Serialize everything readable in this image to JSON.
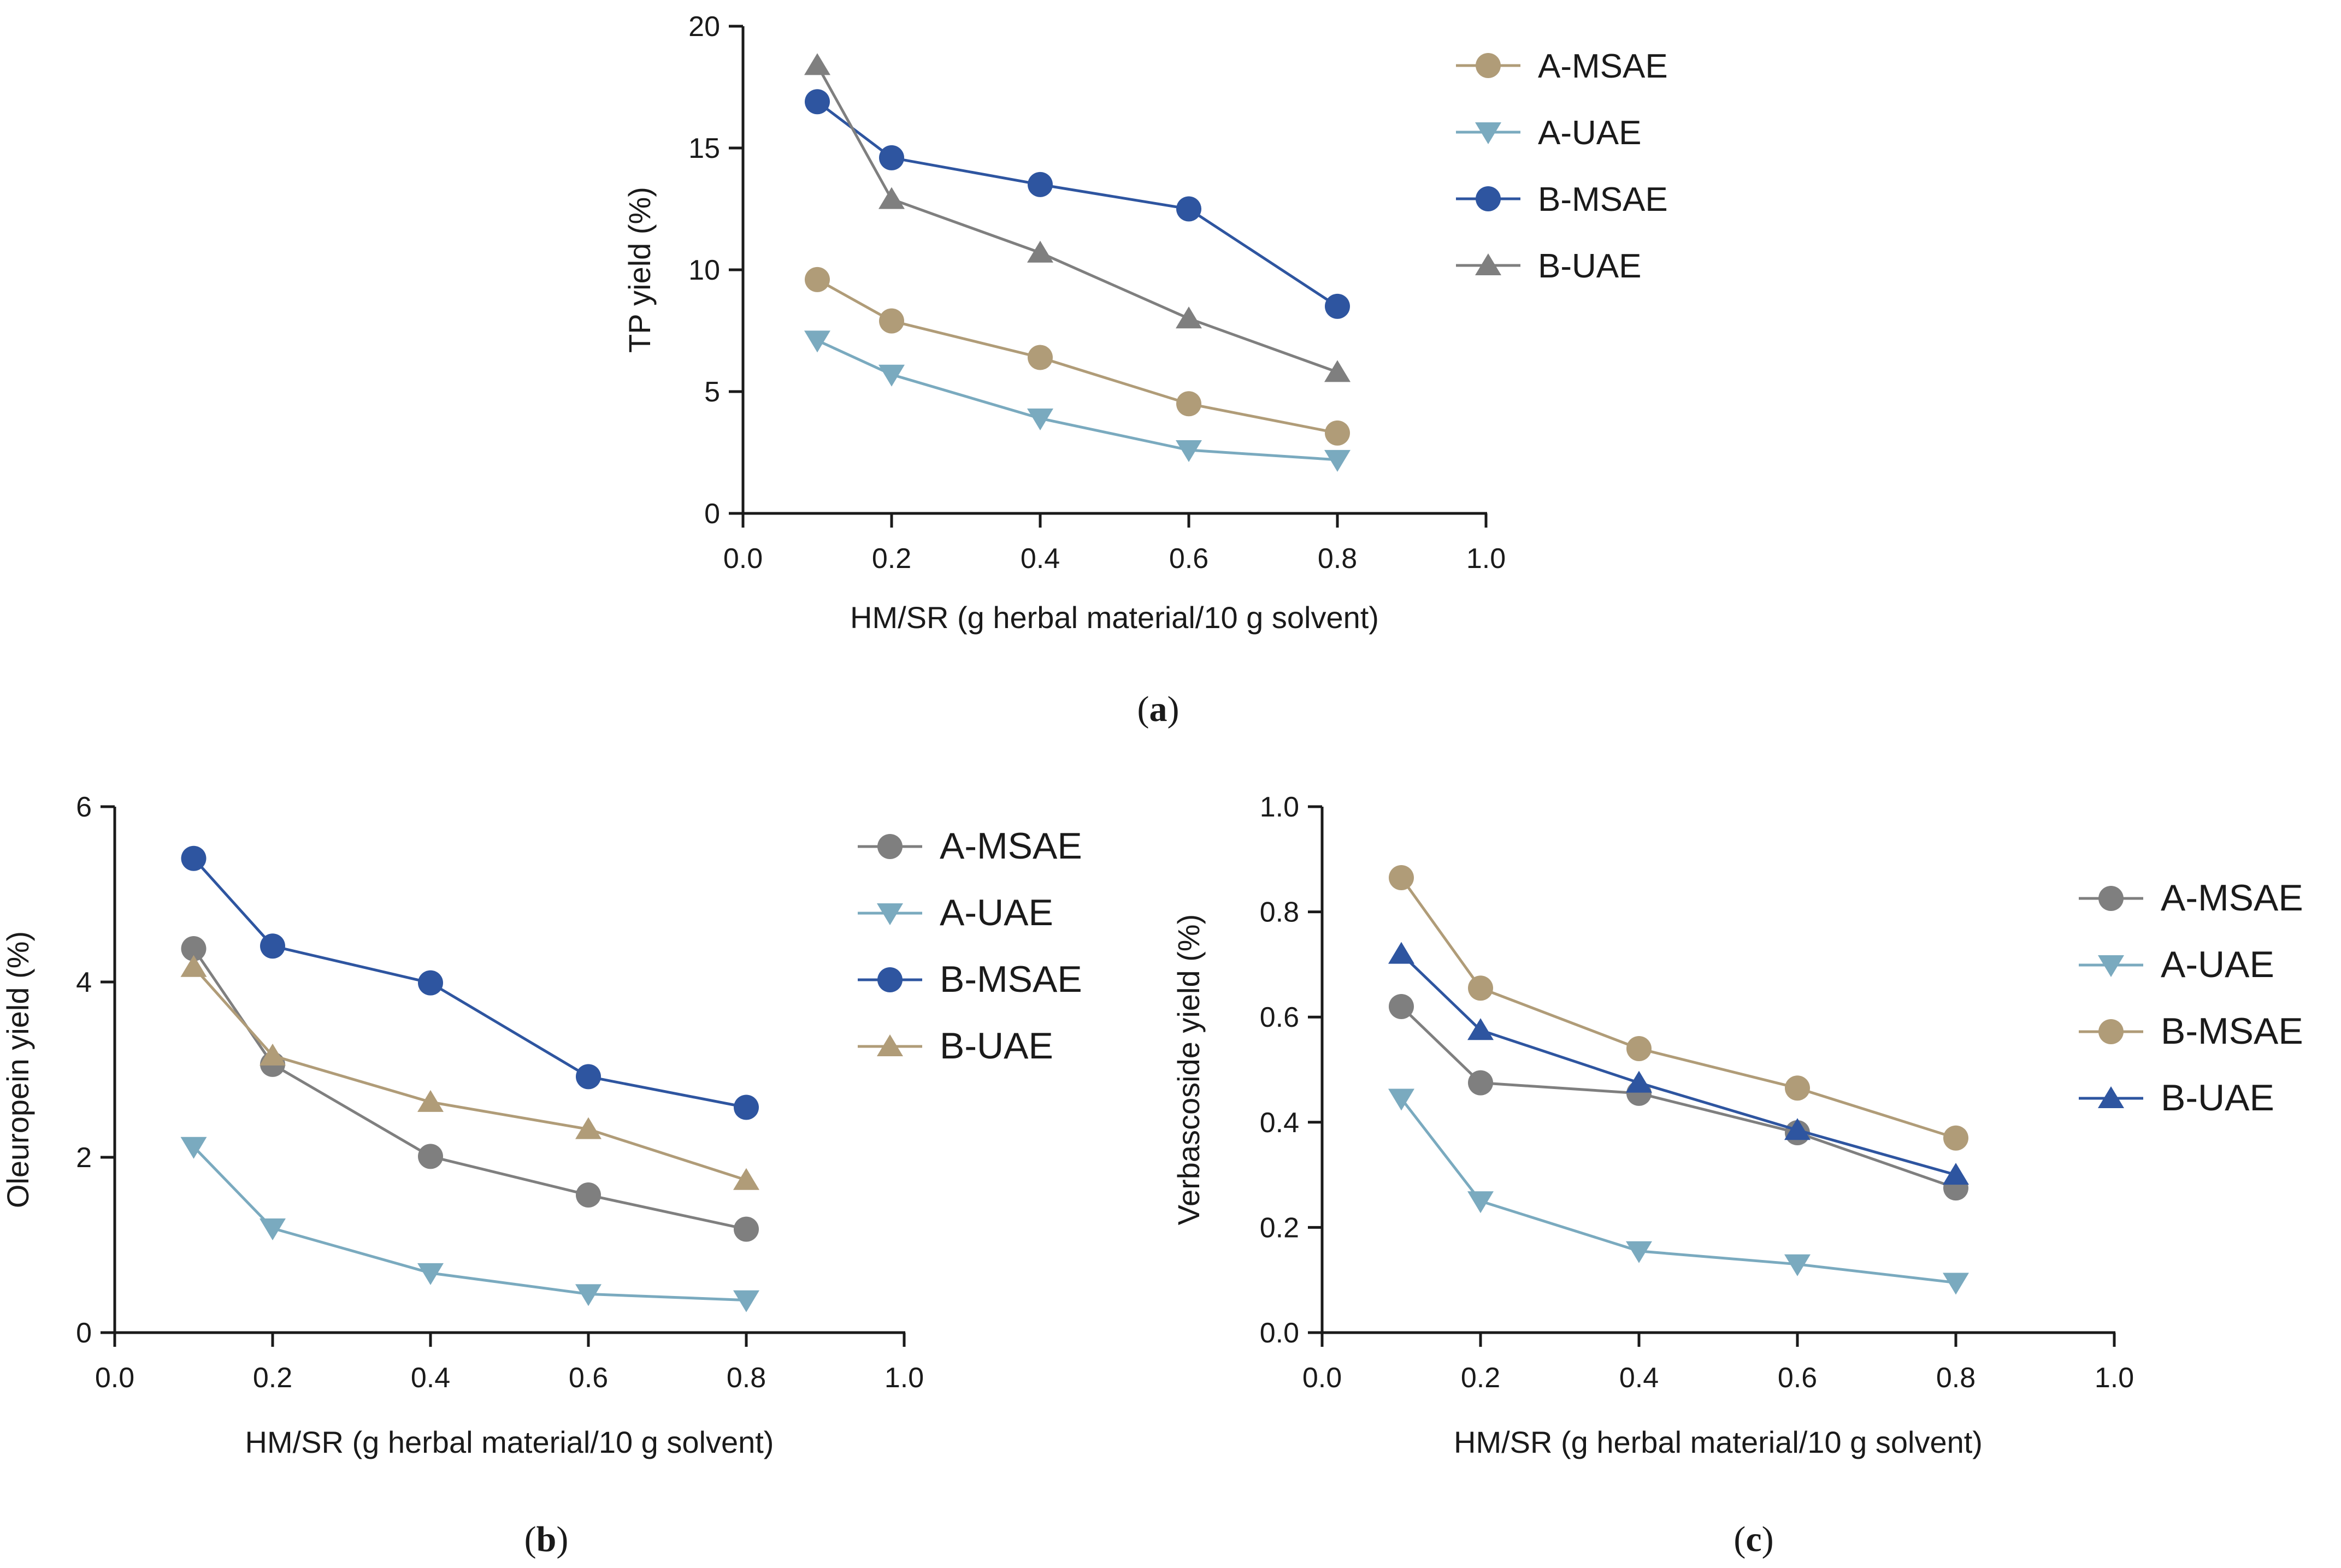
{
  "colors": {
    "tan": "#b09c78",
    "light_blue": "#7aaabf",
    "dark_blue": "#2e55a0",
    "gray": "#7f7f7f",
    "axis": "#1a1a1a"
  },
  "chart_data": [
    {
      "panel": "a",
      "type": "line",
      "title": "",
      "xlabel": "HM/SR (g herbal material/10 g solvent)",
      "ylabel": "TP yield (%)",
      "xlim": [
        0,
        1.0
      ],
      "ylim": [
        0,
        20
      ],
      "xticks": [
        0.0,
        0.2,
        0.4,
        0.6,
        0.8,
        1.0
      ],
      "xtick_labels": [
        "0.0",
        "0.2",
        "0.4",
        "0.6",
        "0.8",
        "1.0"
      ],
      "yticks": [
        0,
        5,
        10,
        15,
        20
      ],
      "ytick_labels": [
        "0",
        "5",
        "10",
        "15",
        "20"
      ],
      "x": [
        0.1,
        0.2,
        0.4,
        0.6,
        0.8
      ],
      "legend_position": "right",
      "series": [
        {
          "name": "A-MSAE",
          "marker": "circle",
          "color": "#b09c78",
          "values": [
            9.6,
            7.9,
            6.4,
            4.5,
            3.3
          ]
        },
        {
          "name": "A-UAE",
          "marker": "triangle-down",
          "color": "#7aaabf",
          "values": [
            7.1,
            5.7,
            3.9,
            2.6,
            2.2
          ]
        },
        {
          "name": "B-MSAE",
          "marker": "circle",
          "color": "#2e55a0",
          "values": [
            16.9,
            14.6,
            13.5,
            12.5,
            8.5
          ]
        },
        {
          "name": "B-UAE",
          "marker": "triangle-up",
          "color": "#7f7f7f",
          "values": [
            18.4,
            12.9,
            10.7,
            8.0,
            5.8
          ]
        }
      ],
      "caption_letter": "a"
    },
    {
      "panel": "b",
      "type": "line",
      "title": "",
      "xlabel": "HM/SR (g herbal material/10 g solvent)",
      "ylabel": "Oleuropein yield  (%)",
      "xlim": [
        0,
        1.0
      ],
      "ylim": [
        0,
        6
      ],
      "xticks": [
        0.0,
        0.2,
        0.4,
        0.6,
        0.8,
        1.0
      ],
      "xtick_labels": [
        "0.0",
        "0.2",
        "0.4",
        "0.6",
        "0.8",
        "1.0"
      ],
      "yticks": [
        0,
        2,
        4,
        6
      ],
      "ytick_labels": [
        "0",
        "2",
        "4",
        "6"
      ],
      "x": [
        0.1,
        0.2,
        0.4,
        0.6,
        0.8
      ],
      "legend_position": "right",
      "series": [
        {
          "name": "A-MSAE",
          "marker": "circle",
          "color": "#7f7f7f",
          "values": [
            4.38,
            3.06,
            2.01,
            1.57,
            1.18
          ]
        },
        {
          "name": "A-UAE",
          "marker": "triangle-down",
          "color": "#7aaabf",
          "values": [
            2.12,
            1.19,
            0.68,
            0.44,
            0.37
          ]
        },
        {
          "name": "B-MSAE",
          "marker": "circle",
          "color": "#2e55a0",
          "values": [
            5.41,
            4.41,
            3.99,
            2.92,
            2.57
          ]
        },
        {
          "name": "B-UAE",
          "marker": "triangle-up",
          "color": "#b09c78",
          "values": [
            4.17,
            3.16,
            2.63,
            2.32,
            1.74
          ]
        }
      ],
      "caption_letter": "b"
    },
    {
      "panel": "c",
      "type": "line",
      "title": "",
      "xlabel": "HM/SR (g herbal material/10 g solvent)",
      "ylabel": "Verbascoside yield  (%)",
      "xlim": [
        0,
        1.0
      ],
      "ylim": [
        0,
        1.0
      ],
      "xticks": [
        0.0,
        0.2,
        0.4,
        0.6,
        0.8,
        1.0
      ],
      "xtick_labels": [
        "0.0",
        "0.2",
        "0.4",
        "0.6",
        "0.8",
        "1.0"
      ],
      "yticks": [
        0.0,
        0.2,
        0.4,
        0.6,
        0.8,
        1.0
      ],
      "ytick_labels": [
        "0.0",
        "0.2",
        "0.4",
        "0.6",
        "0.8",
        "1.0"
      ],
      "x": [
        0.1,
        0.2,
        0.4,
        0.6,
        0.8
      ],
      "legend_position": "right",
      "series": [
        {
          "name": "A-MSAE",
          "marker": "circle",
          "color": "#7f7f7f",
          "values": [
            0.62,
            0.475,
            0.455,
            0.38,
            0.275
          ]
        },
        {
          "name": "A-UAE",
          "marker": "triangle-down",
          "color": "#7aaabf",
          "values": [
            0.445,
            0.25,
            0.155,
            0.13,
            0.095
          ]
        },
        {
          "name": "B-MSAE",
          "marker": "circle",
          "color": "#b09c78",
          "values": [
            0.865,
            0.655,
            0.54,
            0.465,
            0.37
          ]
        },
        {
          "name": "B-UAE",
          "marker": "triangle-up",
          "color": "#2e55a0",
          "values": [
            0.72,
            0.575,
            0.475,
            0.385,
            0.3
          ]
        }
      ],
      "caption_letter": "c"
    }
  ]
}
